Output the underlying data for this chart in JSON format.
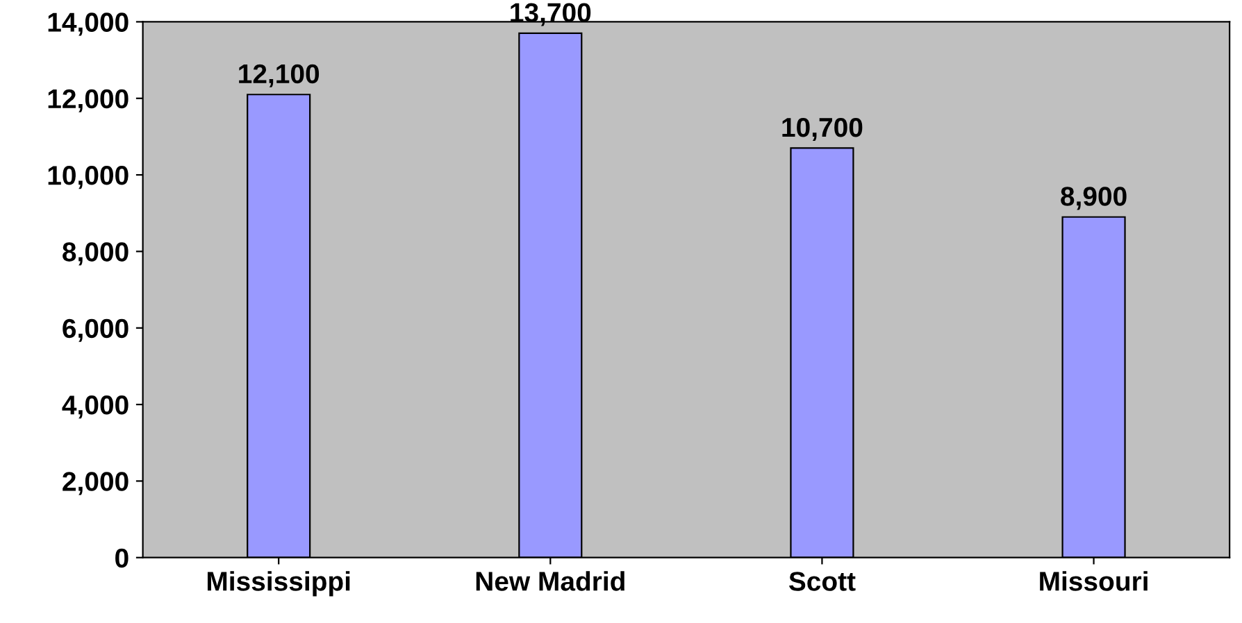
{
  "chart_data": {
    "type": "bar",
    "categories": [
      "Mississippi",
      "New Madrid",
      "Scott",
      "Missouri"
    ],
    "values": [
      12100,
      13700,
      10700,
      8900
    ],
    "value_labels": [
      "12,100",
      "13,700",
      "10,700",
      "8,900"
    ],
    "color": "#9999ff",
    "ylim": [
      0,
      14000
    ],
    "yticks": [
      {
        "value": 0,
        "label": "0"
      },
      {
        "value": 2000,
        "label": "2,000"
      },
      {
        "value": 4000,
        "label": "4,000"
      },
      {
        "value": 6000,
        "label": "6,000"
      },
      {
        "value": 8000,
        "label": "8,000"
      },
      {
        "value": 10000,
        "label": "10,000"
      },
      {
        "value": 12000,
        "label": "12,000"
      },
      {
        "value": 14000,
        "label": "14,000"
      }
    ],
    "grid": false,
    "legend": false
  }
}
